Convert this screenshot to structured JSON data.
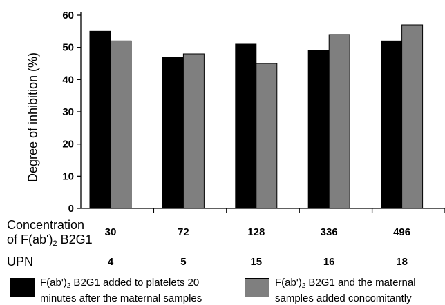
{
  "chart_data": {
    "type": "bar",
    "categories": [
      "30",
      "72",
      "128",
      "336",
      "496"
    ],
    "series": [
      {
        "name": "F(ab')2 B2G1 added to platelets 20 minutes after the maternal samples",
        "values": [
          55,
          47,
          51,
          49,
          52
        ],
        "color": "#000000"
      },
      {
        "name": "F(ab')2 B2G1 and the maternal samples added concomitantly",
        "values": [
          52,
          48,
          45,
          54,
          57
        ],
        "color": "#7f7f7f"
      }
    ],
    "ylabel": "Degree of inhibition (%)",
    "ylim": [
      0,
      60
    ],
    "yticks": [
      0,
      10,
      20,
      30,
      40,
      50,
      60
    ],
    "grid": false
  },
  "rows": {
    "concentration_label_line1": "Concentration",
    "concentration_label_line2_pre": "of F(ab')",
    "concentration_label_sub": "2",
    "concentration_label_line2_post": " B2G1",
    "concentrations": [
      "30",
      "72",
      "128",
      "336",
      "496"
    ],
    "upn_label": "UPN",
    "upns": [
      "4",
      "5",
      "15",
      "16",
      "18"
    ]
  },
  "legend": {
    "item1_pre": "F(ab')",
    "item1_sub": "2",
    "item1_post": " B2G1 added to platelets 20",
    "item1_line2": "minutes after the maternal samples",
    "item2_pre": "F(ab')",
    "item2_sub": "2",
    "item2_post": " B2G1 and the maternal",
    "item2_line2": "samples added concomitantly"
  }
}
